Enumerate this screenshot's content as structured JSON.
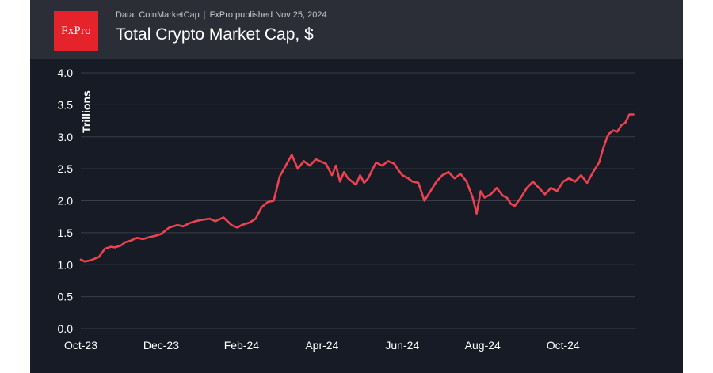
{
  "brand": {
    "logo_text": "FxPro",
    "logo_color": "#e5232b"
  },
  "header": {
    "source": "Data: CoinMarketCap",
    "published": "FxPro published Nov 25, 2024",
    "title": "Total Crypto Market Cap, $"
  },
  "colors": {
    "panel_bg": "#171b26",
    "header_bg": "#2b2e36",
    "line": "#ef4250",
    "grid": "#3a3e49",
    "axis_text": "#ffffff"
  },
  "chart_data": {
    "type": "line",
    "title": "Total Crypto Market Cap, $",
    "xlabel": "",
    "ylabel": "Trillions",
    "ylim": [
      0,
      4
    ],
    "yticks": [
      "0.0",
      "0.5",
      "1.0",
      "1.5",
      "2.0",
      "2.5",
      "3.0",
      "3.5",
      "4.0"
    ],
    "xticks": [
      "Oct-23",
      "Dec-23",
      "Feb-24",
      "Apr-24",
      "Jun-24",
      "Aug-24",
      "Oct-24"
    ],
    "x_range_months": [
      0,
      13.8
    ],
    "grid": true,
    "series": [
      {
        "name": "Total Crypto Market Cap",
        "x": [
          0,
          0.1,
          0.25,
          0.45,
          0.6,
          0.75,
          0.85,
          1.0,
          1.1,
          1.25,
          1.4,
          1.55,
          1.7,
          1.85,
          2.0,
          2.2,
          2.4,
          2.55,
          2.7,
          2.85,
          3.0,
          3.2,
          3.35,
          3.55,
          3.75,
          3.9,
          4.0,
          4.2,
          4.35,
          4.5,
          4.65,
          4.8,
          4.95,
          5.1,
          5.25,
          5.4,
          5.55,
          5.7,
          5.85,
          5.95,
          6.1,
          6.25,
          6.35,
          6.45,
          6.55,
          6.65,
          6.75,
          6.85,
          6.95,
          7.05,
          7.15,
          7.25,
          7.35,
          7.5,
          7.65,
          7.8,
          7.9,
          8.0,
          8.15,
          8.25,
          8.4,
          8.55,
          8.7,
          8.85,
          9.0,
          9.15,
          9.3,
          9.45,
          9.6,
          9.75,
          9.85,
          9.95,
          10.05,
          10.2,
          10.35,
          10.5,
          10.6,
          10.7,
          10.8,
          10.95,
          11.1,
          11.25,
          11.4,
          11.55,
          11.7,
          11.85,
          12.0,
          12.15,
          12.3,
          12.45,
          12.6,
          12.75,
          12.9,
          13.0,
          13.1,
          13.15,
          13.25,
          13.35,
          13.45,
          13.55,
          13.65,
          13.75
        ],
        "values": [
          1.08,
          1.05,
          1.07,
          1.12,
          1.25,
          1.28,
          1.27,
          1.3,
          1.35,
          1.38,
          1.42,
          1.4,
          1.43,
          1.45,
          1.48,
          1.58,
          1.62,
          1.6,
          1.65,
          1.68,
          1.7,
          1.72,
          1.68,
          1.74,
          1.62,
          1.58,
          1.62,
          1.66,
          1.72,
          1.9,
          1.98,
          2.0,
          2.38,
          2.55,
          2.72,
          2.5,
          2.62,
          2.55,
          2.65,
          2.62,
          2.58,
          2.4,
          2.55,
          2.3,
          2.45,
          2.35,
          2.3,
          2.25,
          2.4,
          2.28,
          2.35,
          2.48,
          2.6,
          2.55,
          2.62,
          2.58,
          2.48,
          2.4,
          2.35,
          2.3,
          2.28,
          2.0,
          2.15,
          2.3,
          2.4,
          2.45,
          2.35,
          2.42,
          2.3,
          2.05,
          1.8,
          2.15,
          2.05,
          2.1,
          2.2,
          2.08,
          2.05,
          1.95,
          1.92,
          2.05,
          2.2,
          2.3,
          2.2,
          2.1,
          2.2,
          2.15,
          2.3,
          2.35,
          2.3,
          2.4,
          2.28,
          2.45,
          2.6,
          2.82,
          3.0,
          3.05,
          3.1,
          3.08,
          3.18,
          3.22,
          3.35,
          3.35
        ]
      }
    ]
  }
}
